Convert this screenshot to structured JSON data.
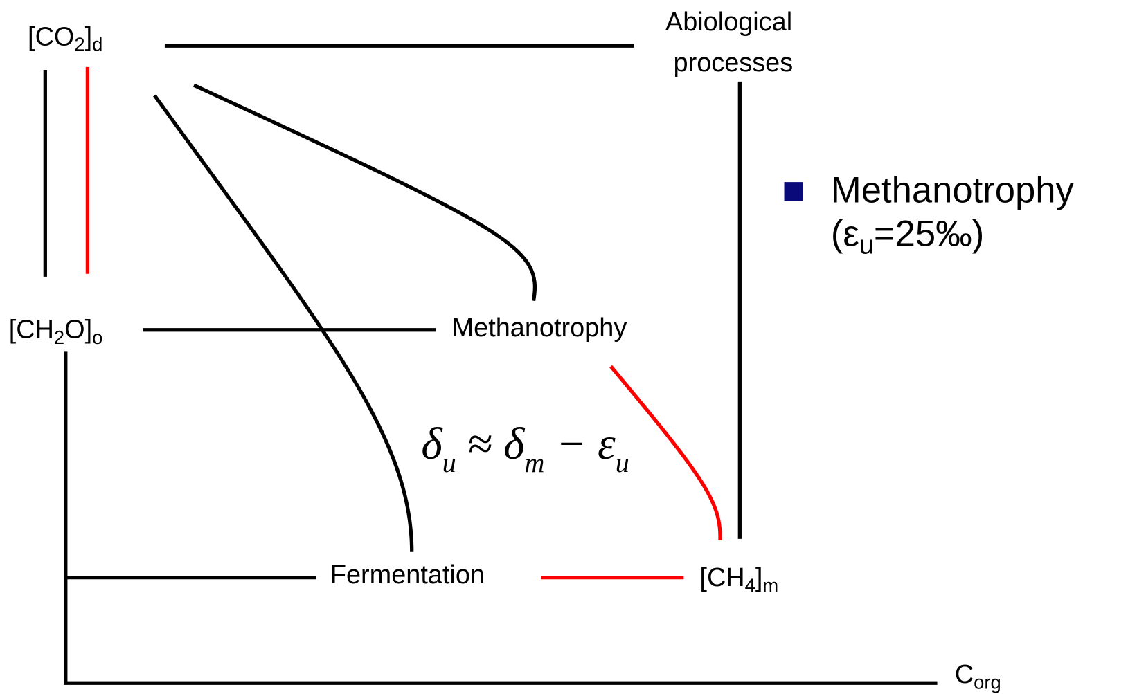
{
  "nodes": [
    {
      "parts": [
        "[CO",
        "2",
        "]",
        "d"
      ]
    },
    {
      "parts": [
        "Abiological",
        "processes"
      ]
    },
    {
      "parts": [
        "[CH",
        "2",
        "O]",
        "o"
      ]
    },
    {
      "parts": [
        "Methanotrophy"
      ]
    },
    {
      "parts": [
        "Fermentation"
      ]
    },
    {
      "parts": [
        "[CH",
        "4",
        "]",
        "m"
      ]
    },
    {
      "parts": [
        "C",
        "org"
      ]
    }
  ],
  "equation": [
    "δ",
    "u",
    " ≈ ",
    "δ",
    "m",
    " − ",
    "ε",
    "u"
  ],
  "legend": {
    "title": "Methanotrophy",
    "parts": [
      "(ε",
      "u",
      "=25‰)"
    ]
  }
}
